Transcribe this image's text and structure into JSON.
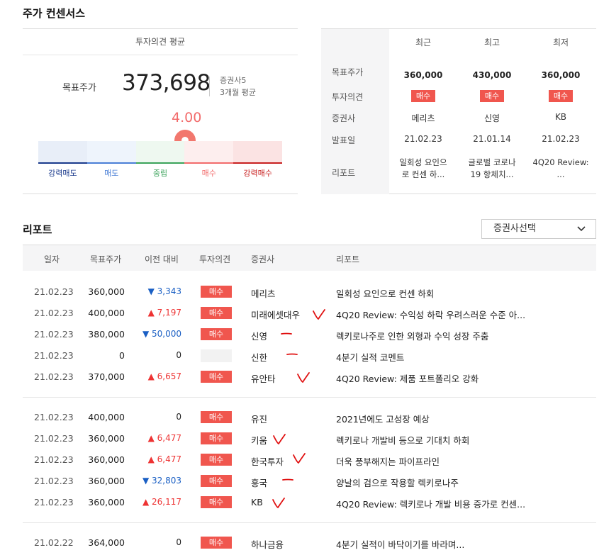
{
  "consensus": {
    "title": "주가 컨센서스",
    "avg_header": "투자의견 평균",
    "target_label": "목표주가",
    "target_value": "373,698",
    "broker_count": "증권사5",
    "avg_period": "3개월 평균",
    "gauge_value": "4.00",
    "gauge_labels": [
      "강력매도",
      "매도",
      "중립",
      "매수",
      "강력매수"
    ],
    "gauge_colors": {
      "strong_sell": "#1a3a8c",
      "sell": "#4a7fd6",
      "neutral": "#3aa35a",
      "buy": "#f26b6b",
      "strong_buy": "#c82020",
      "pin": "#f2786e"
    }
  },
  "recent": {
    "columns": [
      "최근",
      "최고",
      "최저"
    ],
    "row_labels": [
      "목표주가",
      "투자의견",
      "증권사",
      "발표일",
      "리포트"
    ],
    "data": [
      {
        "price": "360,000",
        "opinion": "매수",
        "broker": "메리츠",
        "date": "21.02.23",
        "report": [
          "일회성 요인으",
          "로 컨센 하..."
        ]
      },
      {
        "price": "430,000",
        "opinion": "매수",
        "broker": "신영",
        "date": "21.01.14",
        "report": [
          "글로벌 코로나",
          "19 항체치..."
        ]
      },
      {
        "price": "360,000",
        "opinion": "매수",
        "broker": "KB",
        "date": "21.02.23",
        "report": [
          "4Q20 Review:",
          "..."
        ]
      }
    ]
  },
  "reports": {
    "title": "리포트",
    "broker_select": "증권사선택",
    "columns": [
      "일자",
      "목표주가",
      "이전 대비",
      "투자의견",
      "증권사",
      "리포트"
    ],
    "rows": [
      {
        "date": "21.02.23",
        "price": "360,000",
        "change": "3,343",
        "dir": "down",
        "opinion": "매수",
        "broker": "메리츠",
        "report": "일회성 요인으로 컨센 하회"
      },
      {
        "date": "21.02.23",
        "price": "400,000",
        "change": "7,197",
        "dir": "up",
        "opinion": "매수",
        "broker": "미래에셋대우",
        "report": "4Q20 Review: 수익성 하락 우려스러운 수준 아..."
      },
      {
        "date": "21.02.23",
        "price": "380,000",
        "change": "50,000",
        "dir": "down",
        "opinion": "매수",
        "broker": "신영",
        "report": "렉키로나주로 인한 외형과 수익 성장 주춤"
      },
      {
        "date": "21.02.23",
        "price": "0",
        "change": "0",
        "dir": "flat",
        "opinion": "",
        "broker": "신한",
        "report": "4분기 실적 코멘트"
      },
      {
        "date": "21.02.23",
        "price": "370,000",
        "change": "6,657",
        "dir": "up",
        "opinion": "매수",
        "broker": "유안타",
        "report": "4Q20 Review: 제품 포트폴리오 강화"
      },
      {
        "date": "21.02.23",
        "price": "400,000",
        "change": "0",
        "dir": "flat",
        "opinion": "매수",
        "broker": "유진",
        "report": "2021년에도 고성장 예상"
      },
      {
        "date": "21.02.23",
        "price": "360,000",
        "change": "6,477",
        "dir": "up",
        "opinion": "매수",
        "broker": "키움",
        "report": "렉키로나 개발비 등으로 기대치 하회"
      },
      {
        "date": "21.02.23",
        "price": "360,000",
        "change": "6,477",
        "dir": "up",
        "opinion": "매수",
        "broker": "한국투자",
        "report": "더욱 풍부해지는 파이프라인"
      },
      {
        "date": "21.02.23",
        "price": "360,000",
        "change": "32,803",
        "dir": "down",
        "opinion": "매수",
        "broker": "흥국",
        "report": "양날의 검으로 작용할 렉키로나주"
      },
      {
        "date": "21.02.23",
        "price": "360,000",
        "change": "26,117",
        "dir": "up",
        "opinion": "매수",
        "broker": "KB",
        "report": "4Q20 Review: 렉키로나 개발 비용 증가로 컨센..."
      },
      {
        "date": "21.02.22",
        "price": "364,000",
        "change": "0",
        "dir": "flat",
        "opinion": "매수",
        "broker": "하나금융",
        "report": "4분기 실적이 바닥이기를 바라며..."
      }
    ]
  },
  "annotations": {
    "color": "#e01010",
    "marks": [
      "check",
      "dash",
      "dash",
      "check",
      "check",
      "check",
      "dash",
      "check"
    ]
  }
}
